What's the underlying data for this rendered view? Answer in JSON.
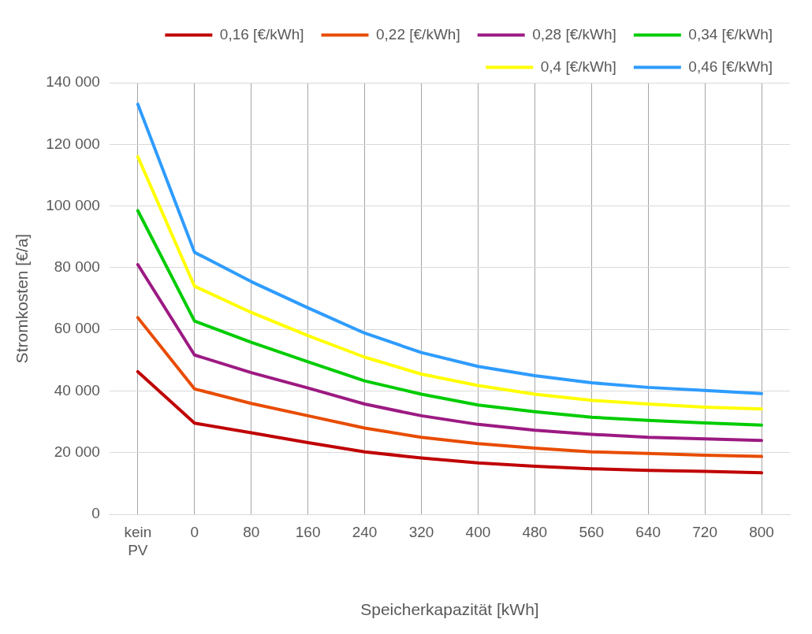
{
  "chart_data": {
    "type": "line",
    "xlabel": "Speicherkapazität [kWh]",
    "ylabel": "Stromkosten [€/a]",
    "categories": [
      "kein PV",
      "0",
      "80",
      "160",
      "240",
      "320",
      "400",
      "480",
      "560",
      "640",
      "720",
      "800"
    ],
    "ylim": [
      0,
      140000
    ],
    "yticks": [
      {
        "value": 0,
        "label": "0"
      },
      {
        "value": 20000,
        "label": "20 000"
      },
      {
        "value": 40000,
        "label": "40 000"
      },
      {
        "value": 60000,
        "label": "60 000"
      },
      {
        "value": 80000,
        "label": "80 000"
      },
      {
        "value": 100000,
        "label": "100 000"
      },
      {
        "value": 120000,
        "label": "120 000"
      },
      {
        "value": 140000,
        "label": "140 000"
      }
    ],
    "grid": true,
    "legend": "top right",
    "marker": "none",
    "line_style": "solid",
    "series": [
      {
        "name": "0,16 [€/kWh]",
        "color": "#c00000",
        "values": [
          46300,
          29600,
          26500,
          23300,
          20300,
          18300,
          16700,
          15600,
          14800,
          14300,
          14000,
          13500
        ]
      },
      {
        "name": "0,22 [€/kWh]",
        "color": "#e84c00",
        "values": [
          63800,
          40700,
          36000,
          32000,
          28000,
          25000,
          23000,
          21500,
          20300,
          19800,
          19200,
          18800
        ]
      },
      {
        "name": "0,28 [€/kWh]",
        "color": "#9c1a82",
        "values": [
          81000,
          51700,
          46000,
          41000,
          35800,
          32000,
          29200,
          27300,
          26000,
          25000,
          24500,
          24000
        ]
      },
      {
        "name": "0,34 [€/kWh]",
        "color": "#00cc00",
        "values": [
          98500,
          62700,
          55800,
          49500,
          43300,
          39000,
          35500,
          33300,
          31500,
          30500,
          29700,
          29000
        ]
      },
      {
        "name": "0,4 [€/kWh]",
        "color": "#ffff00",
        "values": [
          116000,
          74000,
          65500,
          58000,
          51000,
          45500,
          41800,
          39000,
          37000,
          35800,
          34800,
          34200
        ]
      },
      {
        "name": "0,46 [€/kWh]",
        "color": "#2e9cff",
        "values": [
          133000,
          85000,
          75500,
          67000,
          58800,
          52500,
          48000,
          45000,
          42700,
          41200,
          40200,
          39200
        ]
      }
    ]
  }
}
